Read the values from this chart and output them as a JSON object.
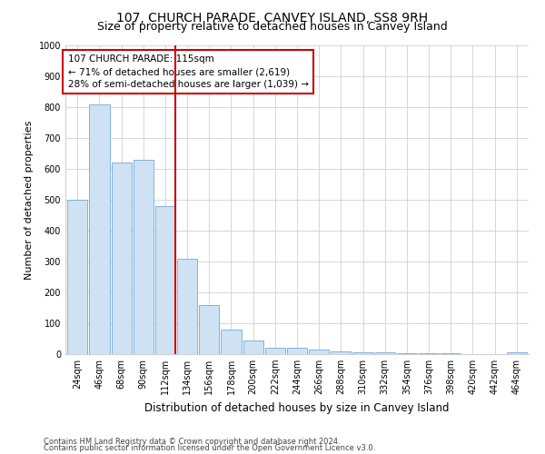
{
  "title": "107, CHURCH PARADE, CANVEY ISLAND, SS8 9RH",
  "subtitle": "Size of property relative to detached houses in Canvey Island",
  "xlabel": "Distribution of detached houses by size in Canvey Island",
  "ylabel": "Number of detached properties",
  "footnote1": "Contains HM Land Registry data © Crown copyright and database right 2024.",
  "footnote2": "Contains public sector information licensed under the Open Government Licence v3.0.",
  "annotation_line1": "107 CHURCH PARADE: 115sqm",
  "annotation_line2": "← 71% of detached houses are smaller (2,619)",
  "annotation_line3": "28% of semi-detached houses are larger (1,039) →",
  "categories": [
    "24sqm",
    "46sqm",
    "68sqm",
    "90sqm",
    "112sqm",
    "134sqm",
    "156sqm",
    "178sqm",
    "200sqm",
    "222sqm",
    "244sqm",
    "266sqm",
    "288sqm",
    "310sqm",
    "332sqm",
    "354sqm",
    "376sqm",
    "398sqm",
    "420sqm",
    "442sqm",
    "464sqm"
  ],
  "values": [
    500,
    810,
    620,
    630,
    480,
    310,
    160,
    80,
    43,
    22,
    22,
    15,
    10,
    7,
    5,
    3,
    3,
    3,
    0,
    0,
    5
  ],
  "bar_color": "#cfe2f3",
  "bar_edge_color": "#6fa8dc",
  "vline_color": "#cc0000",
  "vline_index": 4,
  "annotation_box_color": "#cc0000",
  "ylim": [
    0,
    1000
  ],
  "yticks": [
    0,
    100,
    200,
    300,
    400,
    500,
    600,
    700,
    800,
    900,
    1000
  ],
  "grid_color": "#d0d0d0",
  "background_color": "#ffffff",
  "title_fontsize": 10,
  "subtitle_fontsize": 9,
  "tick_fontsize": 7,
  "ylabel_fontsize": 8,
  "xlabel_fontsize": 8.5,
  "annotation_fontsize": 7.5,
  "footnote_fontsize": 6
}
